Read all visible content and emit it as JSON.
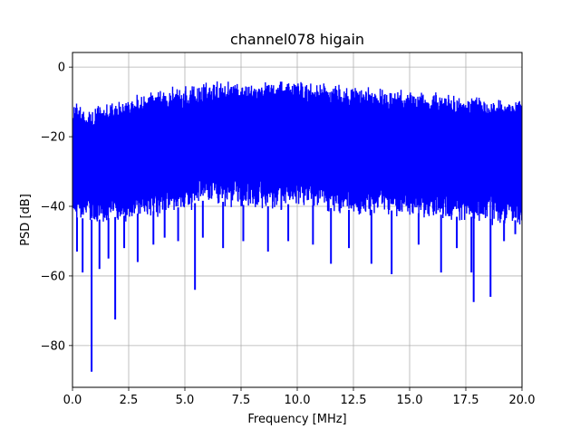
{
  "chart_data": {
    "type": "line",
    "title": "channel078 higain",
    "xlabel": "Frequency [MHz]",
    "ylabel": "PSD [dB]",
    "xlim": [
      0,
      20
    ],
    "ylim": [
      -92,
      4.2
    ],
    "grid": true,
    "x_ticks": [
      "0.0",
      "2.5",
      "5.0",
      "7.5",
      "10.0",
      "12.5",
      "15.0",
      "17.5",
      "20.0"
    ],
    "y_ticks": [
      "0",
      "−20",
      "−40",
      "−60",
      "−80"
    ],
    "series": [
      {
        "color": "#0000ff",
        "upper_envelope": {
          "x": [
            0.0,
            0.1,
            0.5,
            1.0,
            1.5,
            2.0,
            2.5,
            3.0,
            4.0,
            5.0,
            6.0,
            7.0,
            8.0,
            9.0,
            10.0,
            11.0,
            12.0,
            13.0,
            14.0,
            15.0,
            16.0,
            17.0,
            18.0,
            19.0,
            20.0
          ],
          "y": [
            -12,
            -8,
            -12,
            -11,
            -10,
            -9,
            -8,
            -7,
            -6,
            -5,
            -4,
            -3.5,
            -3,
            -3,
            -3.5,
            -4,
            -5,
            -5.5,
            -6,
            -6.5,
            -7,
            -7.5,
            -8,
            -8.5,
            -8.5
          ]
        },
        "lower_envelope": {
          "x": [
            0.0,
            1.0,
            2.0,
            3.0,
            4.0,
            5.0,
            6.0,
            7.0,
            8.0,
            9.0,
            10.0,
            11.0,
            12.0,
            13.0,
            14.0,
            15.0,
            16.0,
            17.0,
            18.0,
            19.0,
            20.0
          ],
          "y": [
            -45,
            -46,
            -45,
            -44,
            -43,
            -42,
            -40,
            -41,
            -42,
            -42,
            -41,
            -42,
            -43,
            -43,
            -43,
            -44,
            -44,
            -45,
            -45,
            -46,
            -46
          ]
        },
        "dips": [
          {
            "x": 0.2,
            "y": -53
          },
          {
            "x": 0.45,
            "y": -59
          },
          {
            "x": 0.85,
            "y": -87.5
          },
          {
            "x": 1.2,
            "y": -58
          },
          {
            "x": 1.6,
            "y": -55
          },
          {
            "x": 1.9,
            "y": -72.5
          },
          {
            "x": 2.3,
            "y": -52
          },
          {
            "x": 2.9,
            "y": -56
          },
          {
            "x": 3.6,
            "y": -51
          },
          {
            "x": 4.1,
            "y": -49
          },
          {
            "x": 4.7,
            "y": -50
          },
          {
            "x": 5.45,
            "y": -64
          },
          {
            "x": 5.8,
            "y": -49
          },
          {
            "x": 6.7,
            "y": -52
          },
          {
            "x": 7.6,
            "y": -50
          },
          {
            "x": 8.7,
            "y": -53
          },
          {
            "x": 9.6,
            "y": -50
          },
          {
            "x": 10.7,
            "y": -51
          },
          {
            "x": 11.5,
            "y": -56.5
          },
          {
            "x": 12.3,
            "y": -52
          },
          {
            "x": 13.3,
            "y": -56.5
          },
          {
            "x": 14.2,
            "y": -59.5
          },
          {
            "x": 15.4,
            "y": -51
          },
          {
            "x": 16.4,
            "y": -59
          },
          {
            "x": 17.1,
            "y": -52
          },
          {
            "x": 17.75,
            "y": -59
          },
          {
            "x": 17.85,
            "y": -67.5
          },
          {
            "x": 18.6,
            "y": -66
          },
          {
            "x": 19.2,
            "y": -50
          },
          {
            "x": 19.7,
            "y": -48
          }
        ]
      }
    ]
  }
}
